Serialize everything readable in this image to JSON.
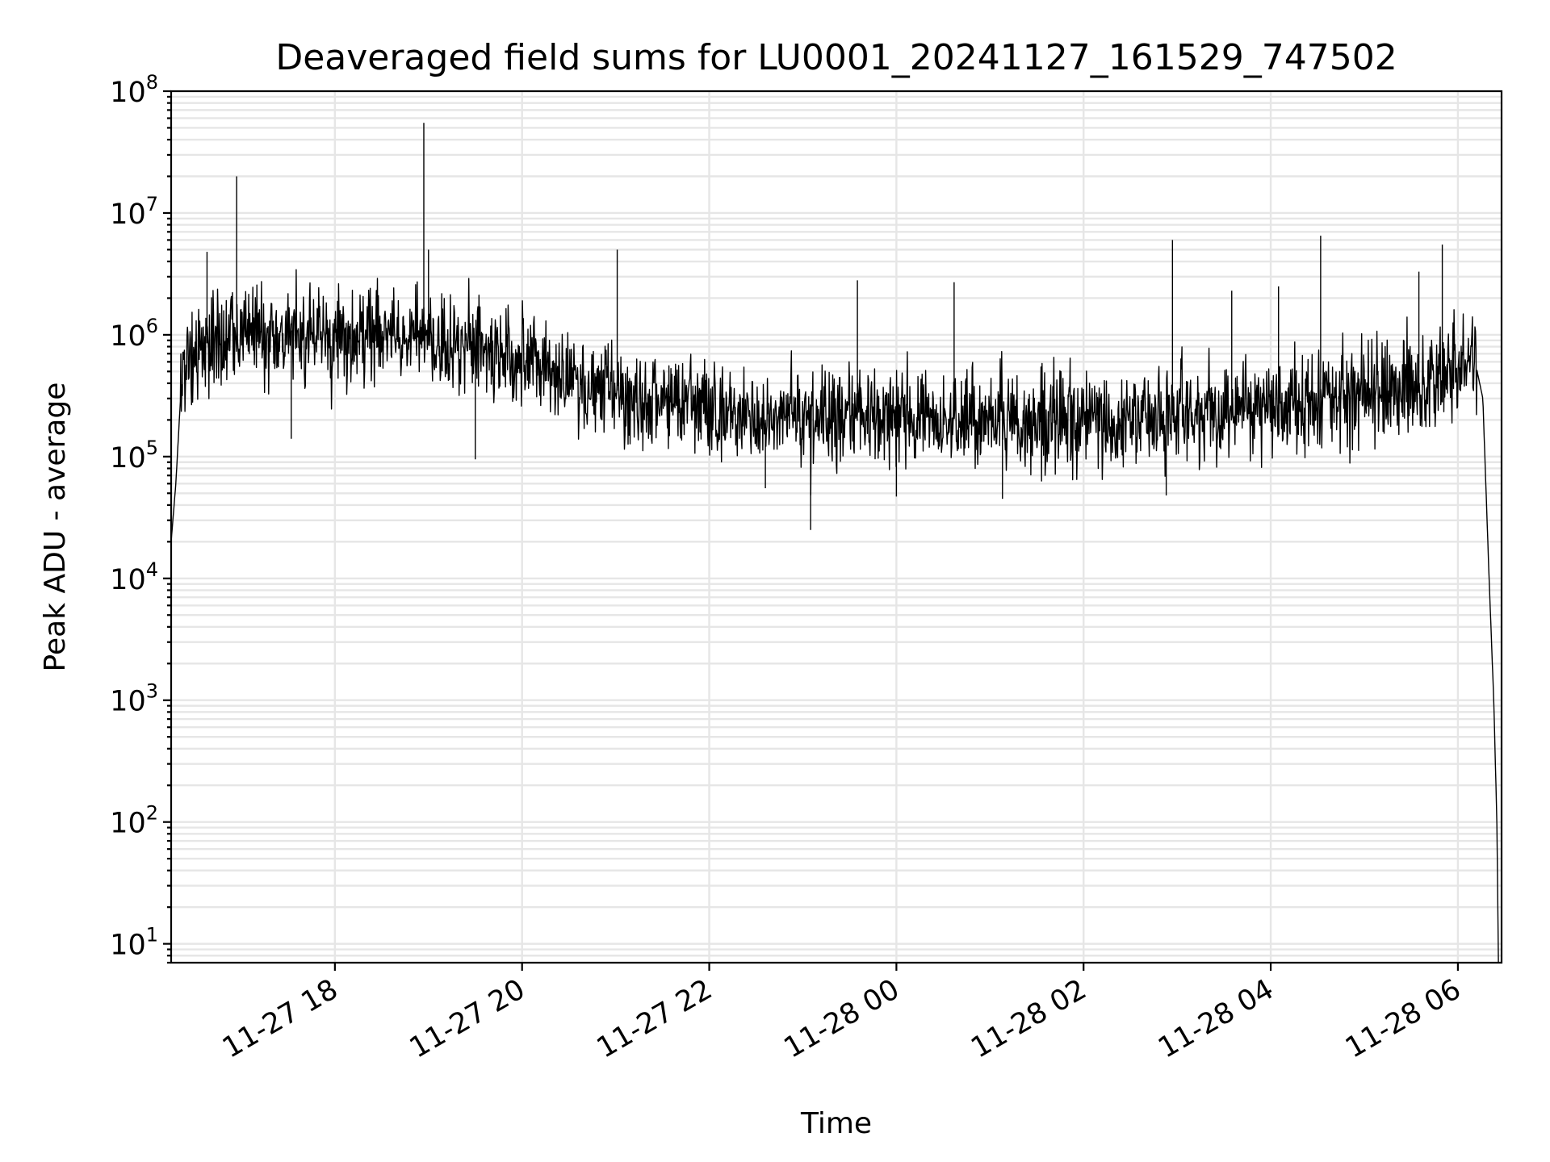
{
  "chart_data": {
    "type": "line",
    "title": "Deaveraged field sums for LU0001_20241127_161529_747502",
    "xlabel": "Time",
    "ylabel": "Peak ADU - average",
    "yscale": "log",
    "ylim": [
      7,
      100000000
    ],
    "xlim": [
      "2024-11-27 16:15",
      "2024-11-28 06:28"
    ],
    "grid": "on (major and minor)",
    "x_tick_labels": [
      "11-27 18",
      "11-27 20",
      "11-27 22",
      "11-28 00",
      "11-28 02",
      "11-28 04",
      "11-28 06"
    ],
    "x_ticks": [
      "2024-11-27 18:00",
      "2024-11-27 20:00",
      "2024-11-27 22:00",
      "2024-11-28 00:00",
      "2024-11-28 02:00",
      "2024-11-28 04:00",
      "2024-11-28 06:00"
    ],
    "y_tick_labels": [
      {
        "base": "10",
        "exp": "1",
        "value": 10
      },
      {
        "base": "10",
        "exp": "2",
        "value": 100
      },
      {
        "base": "10",
        "exp": "3",
        "value": 1000
      },
      {
        "base": "10",
        "exp": "4",
        "value": 10000
      },
      {
        "base": "10",
        "exp": "5",
        "value": 100000
      },
      {
        "base": "10",
        "exp": "6",
        "value": 1000000
      },
      {
        "base": "10",
        "exp": "7",
        "value": 10000000
      },
      {
        "base": "10",
        "exp": "8",
        "value": 100000000
      }
    ],
    "series": [
      {
        "color": "#000000",
        "x": [
          "2024-11-27 16:15",
          "2024-11-27 16:18",
          "2024-11-27 16:21",
          "2024-11-27 16:24",
          "2024-11-27 16:30",
          "2024-11-27 16:45",
          "2024-11-27 17:00",
          "2024-11-27 17:15",
          "2024-11-27 17:30",
          "2024-11-27 17:45",
          "2024-11-27 18:00",
          "2024-11-27 18:30",
          "2024-11-27 19:00",
          "2024-11-27 19:30",
          "2024-11-27 20:00",
          "2024-11-27 20:30",
          "2024-11-27 21:00",
          "2024-11-27 21:30",
          "2024-11-27 22:00",
          "2024-11-27 22:30",
          "2024-11-27 23:00",
          "2024-11-27 23:30",
          "2024-11-28 00:00",
          "2024-11-28 00:30",
          "2024-11-28 01:00",
          "2024-11-28 01:30",
          "2024-11-28 02:00",
          "2024-11-28 02:30",
          "2024-11-28 03:00",
          "2024-11-28 03:30",
          "2024-11-28 04:00",
          "2024-11-28 04:30",
          "2024-11-28 05:00",
          "2024-11-28 05:30",
          "2024-11-28 06:00",
          "2024-11-28 06:10",
          "2024-11-28 06:16",
          "2024-11-28 06:20",
          "2024-11-28 06:23",
          "2024-11-28 06:25",
          "2024-11-28 06:26"
        ],
        "y": [
          20000,
          60000,
          300000,
          600000,
          800000,
          900000,
          1000000,
          1000000,
          1100000,
          1000000,
          1000000,
          950000,
          900000,
          800000,
          600000,
          450000,
          350000,
          300000,
          270000,
          200000,
          200000,
          220000,
          230000,
          210000,
          200000,
          190000,
          200000,
          210000,
          220000,
          240000,
          260000,
          300000,
          350000,
          380000,
          450000,
          700000,
          300000,
          10000,
          1000,
          100,
          7
        ]
      }
    ],
    "spikes": [
      {
        "x": "2024-11-27 16:57",
        "y": 20000000
      },
      {
        "x": "2024-11-27 18:57",
        "y": 55000000
      },
      {
        "x": "2024-11-27 19:00",
        "y": 5000000
      },
      {
        "x": "2024-11-27 21:01",
        "y": 5000000
      },
      {
        "x": "2024-11-28 02:57",
        "y": 6000000
      },
      {
        "x": "2024-11-28 04:32",
        "y": 6500000
      },
      {
        "x": "2024-11-28 05:50",
        "y": 5500000
      },
      {
        "x": "2024-11-27 16:38",
        "y": 4800000
      },
      {
        "x": "2024-11-27 23:35",
        "y": 2800000
      },
      {
        "x": "2024-11-28 00:37",
        "y": 2700000
      },
      {
        "x": "2024-11-28 03:35",
        "y": 2300000
      },
      {
        "x": "2024-11-28 04:05",
        "y": 2500000
      },
      {
        "x": "2024-11-28 05:35",
        "y": 3300000
      }
    ],
    "dips": [
      {
        "x": "2024-11-27 23:05",
        "y": 25000
      },
      {
        "x": "2024-11-27 22:36",
        "y": 55000
      },
      {
        "x": "2024-11-28 01:08",
        "y": 45000
      },
      {
        "x": "2024-11-28 02:53",
        "y": 48000
      },
      {
        "x": "2024-11-28 00:00",
        "y": 47000
      },
      {
        "x": "2024-11-27 19:30",
        "y": 95000
      },
      {
        "x": "2024-11-27 17:32",
        "y": 140000
      }
    ]
  }
}
